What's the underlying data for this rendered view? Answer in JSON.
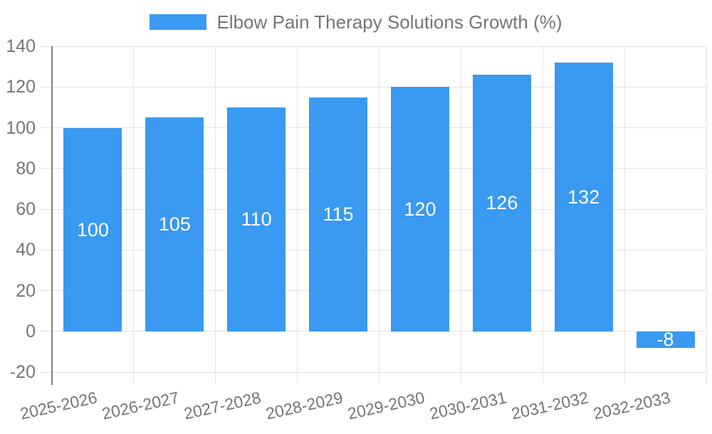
{
  "chart_data": {
    "type": "bar",
    "title": "Elbow Pain Therapy Solutions Growth (%)",
    "categories": [
      "2025-2026",
      "2026-2027",
      "2027-2028",
      "2028-2029",
      "2029-2030",
      "2030-2031",
      "2031-2032",
      "2032-2033"
    ],
    "values": [
      100,
      105,
      110,
      115,
      120,
      126,
      132,
      -8
    ],
    "bar_labels": [
      "100",
      "105",
      "110",
      "115",
      "120",
      "126",
      "132",
      "-8"
    ],
    "xlabel": "",
    "ylabel": "",
    "ylim": [
      -20,
      140
    ],
    "yticks": [
      140,
      120,
      100,
      80,
      60,
      40,
      20,
      0,
      -20
    ],
    "grid": true,
    "legend_position": "top-center",
    "colors": {
      "bar": "#3a99f0",
      "bar_label": "#ffffff",
      "axis_text": "#757575",
      "grid_line": "#e3e3e3",
      "axis_line": "#7f7f7f",
      "background": "#ffffff"
    }
  }
}
